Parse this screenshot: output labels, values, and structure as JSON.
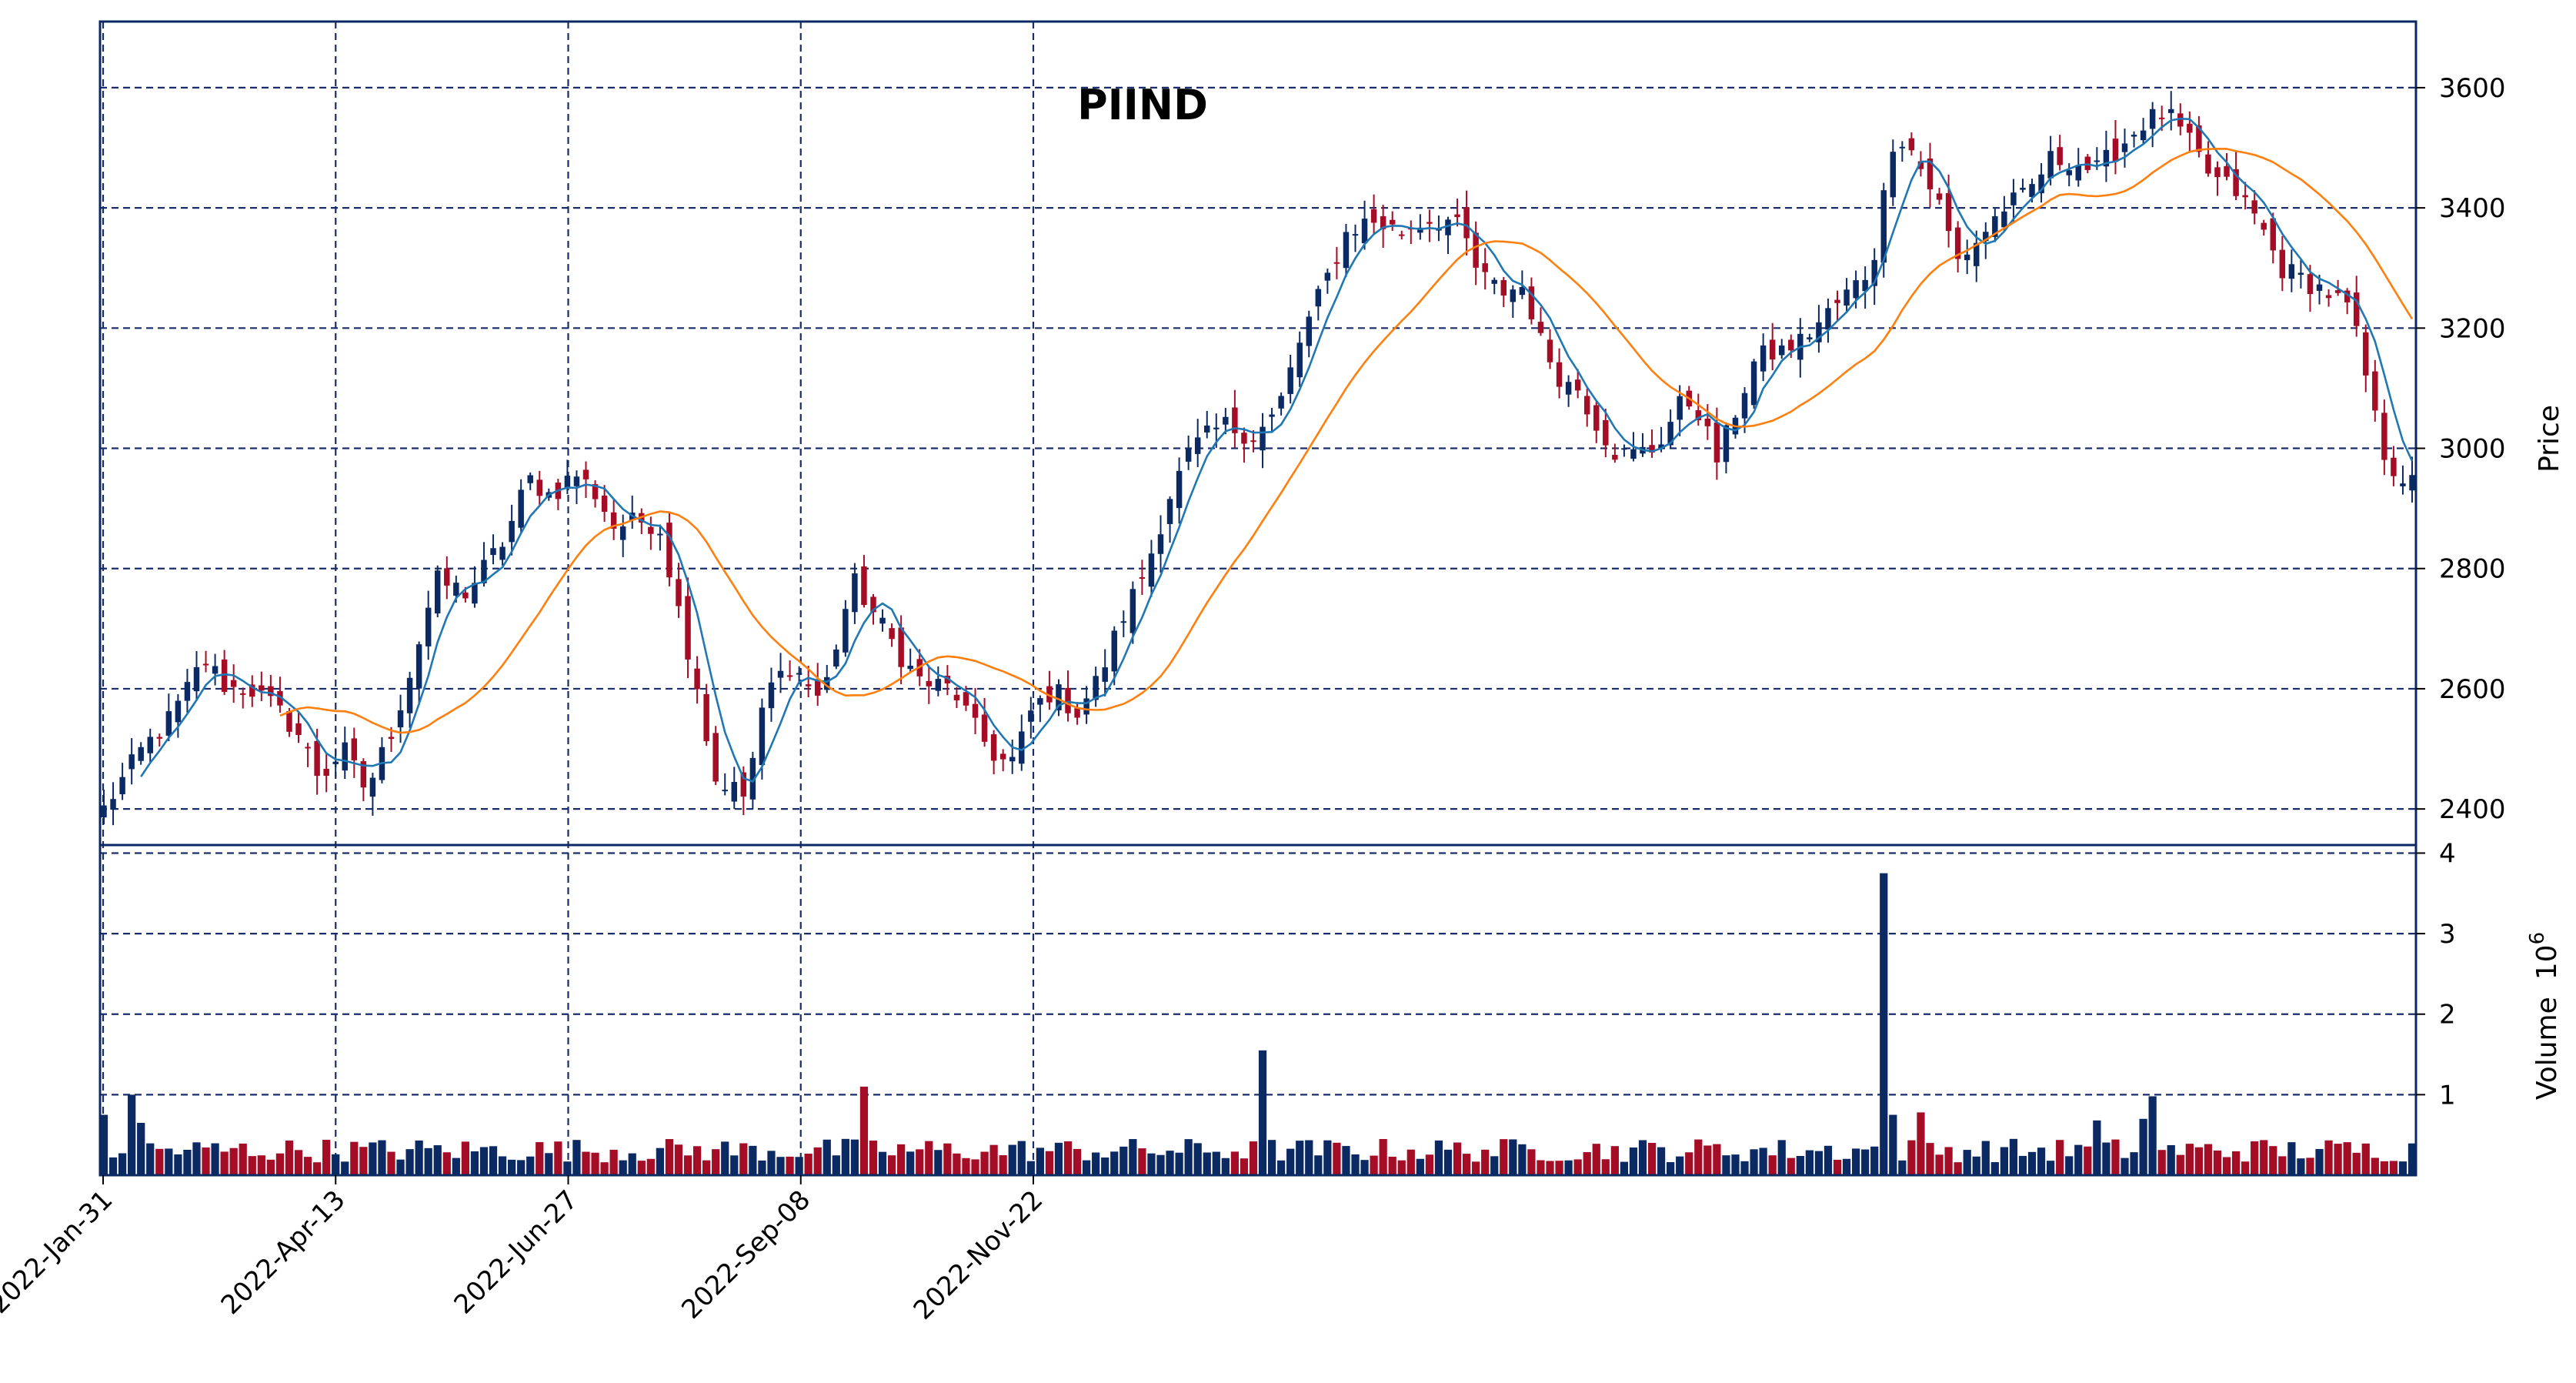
{
  "chart_data": {
    "type": "candlestick",
    "title": "PIIND",
    "price_axis": {
      "label": "Price",
      "ylim": [
        2340,
        3710
      ],
      "ticks": [
        2400,
        2600,
        2800,
        3000,
        3200,
        3400,
        3600
      ]
    },
    "volume_axis": {
      "label": "Volume",
      "multiplier_base": "10",
      "multiplier_exp": "6",
      "ylim": [
        0,
        4.1
      ],
      "ticks": [
        1,
        2,
        3,
        4
      ],
      "tick_labels": [
        "1",
        "2",
        "3",
        "4"
      ]
    },
    "x_axis": {
      "tick_labels": [
        "2022-Jan-31",
        "2022-Apr-13",
        "2022-Jun-27",
        "2022-Sep-08",
        "2022-Nov-22"
      ],
      "tick_index": [
        0,
        50,
        100,
        150,
        200
      ],
      "n_bars": 250
    },
    "grid": true,
    "colors": {
      "up": "#0b2a63",
      "down": "#a50c25",
      "grid": "#1a2d6b",
      "ma_fast": "#1f77b4",
      "ma_slow": "#ff7f0e"
    },
    "moving_averages": [
      5,
      20
    ],
    "anchors": [
      [
        0,
        2400
      ],
      [
        5,
        2500
      ],
      [
        8,
        2540
      ],
      [
        10,
        2580
      ],
      [
        13,
        2650
      ],
      [
        16,
        2600
      ],
      [
        19,
        2600
      ],
      [
        22,
        2570
      ],
      [
        25,
        2530
      ],
      [
        28,
        2450
      ],
      [
        31,
        2500
      ],
      [
        34,
        2430
      ],
      [
        37,
        2520
      ],
      [
        40,
        2640
      ],
      [
        43,
        2780
      ],
      [
        47,
        2760
      ],
      [
        52,
        2850
      ],
      [
        55,
        2950
      ],
      [
        58,
        2920
      ],
      [
        61,
        2960
      ],
      [
        64,
        2920
      ],
      [
        66,
        2870
      ],
      [
        70,
        2880
      ],
      [
        72,
        2870
      ],
      [
        75,
        2700
      ],
      [
        77,
        2600
      ],
      [
        79,
        2450
      ],
      [
        81,
        2440
      ],
      [
        83,
        2420
      ],
      [
        86,
        2600
      ],
      [
        89,
        2640
      ],
      [
        93,
        2580
      ],
      [
        97,
        2780
      ],
      [
        101,
        2700
      ],
      [
        104,
        2640
      ],
      [
        106,
        2610
      ],
      [
        110,
        2600
      ],
      [
        113,
        2530
      ],
      [
        116,
        2480
      ],
      [
        118,
        2480
      ],
      [
        120,
        2560
      ],
      [
        123,
        2600
      ],
      [
        126,
        2560
      ],
      [
        129,
        2620
      ],
      [
        132,
        2720
      ],
      [
        135,
        2800
      ],
      [
        138,
        2920
      ],
      [
        141,
        3000
      ],
      [
        145,
        3040
      ],
      [
        149,
        3020
      ],
      [
        152,
        3060
      ],
      [
        155,
        3180
      ],
      [
        158,
        3270
      ],
      [
        161,
        3360
      ],
      [
        164,
        3380
      ],
      [
        168,
        3360
      ],
      [
        171,
        3380
      ],
      [
        174,
        3380
      ],
      [
        176,
        3360
      ],
      [
        178,
        3290
      ],
      [
        181,
        3260
      ],
      [
        184,
        3270
      ],
      [
        186,
        3180
      ],
      [
        189,
        3110
      ],
      [
        191,
        3100
      ],
      [
        193,
        3050
      ],
      [
        196,
        2990
      ],
      [
        198,
        2990
      ],
      [
        201,
        3000
      ],
      [
        204,
        3070
      ],
      [
        206,
        3080
      ],
      [
        209,
        2980
      ],
      [
        211,
        3050
      ],
      [
        214,
        3150
      ],
      [
        217,
        3160
      ],
      [
        220,
        3180
      ],
      [
        223,
        3220
      ],
      [
        226,
        3260
      ],
      [
        229,
        3300
      ],
      [
        232,
        3530
      ],
      [
        234,
        3500
      ],
      [
        236,
        3450
      ],
      [
        238,
        3400
      ],
      [
        240,
        3310
      ],
      [
        243,
        3350
      ],
      [
        246,
        3400
      ],
      [
        249,
        3420
      ],
      [
        252,
        3480
      ],
      [
        255,
        3480
      ],
      [
        258,
        3460
      ],
      [
        261,
        3500
      ],
      [
        264,
        3540
      ],
      [
        267,
        3560
      ],
      [
        270,
        3510
      ],
      [
        273,
        3450
      ],
      [
        276,
        3430
      ],
      [
        279,
        3380
      ],
      [
        282,
        3300
      ],
      [
        285,
        3280
      ],
      [
        288,
        3260
      ],
      [
        291,
        3230
      ],
      [
        293,
        3120
      ],
      [
        295,
        3000
      ],
      [
        297,
        2960
      ],
      [
        299,
        2940
      ]
    ],
    "volume_spikes": [
      [
        0,
        0.75
      ],
      [
        4,
        1.0
      ],
      [
        5,
        0.65
      ],
      [
        98,
        1.1
      ],
      [
        150,
        1.55
      ],
      [
        231,
        3.75
      ],
      [
        232,
        0.75
      ],
      [
        235,
        0.78
      ],
      [
        265,
        0.98
      ],
      [
        264,
        0.7
      ],
      [
        258,
        0.68
      ]
    ]
  }
}
